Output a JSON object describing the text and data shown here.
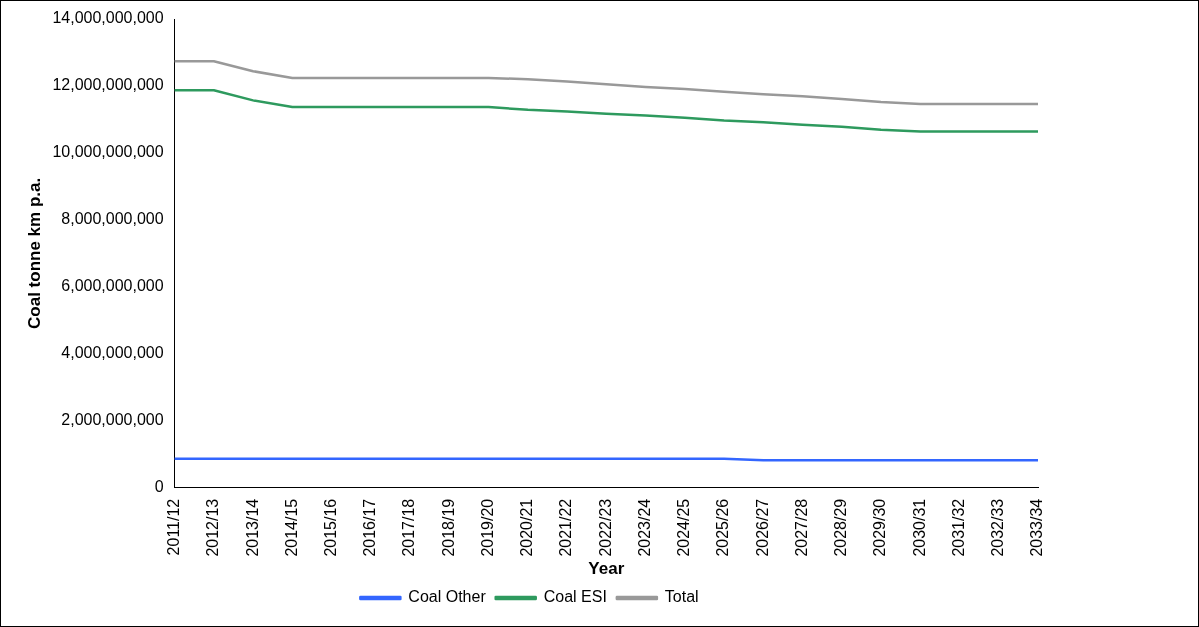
{
  "chart_data": {
    "type": "line",
    "xlabel": "Year",
    "ylabel": "Coal tonne km p.a.",
    "categories": [
      "2011/12",
      "2012/13",
      "2013/14",
      "2014/15",
      "2015/16",
      "2016/17",
      "2017/18",
      "2018/19",
      "2019/20",
      "2020/21",
      "2021/22",
      "2022/23",
      "2023/24",
      "2024/25",
      "2025/26",
      "2026/27",
      "2027/28",
      "2028/29",
      "2029/30",
      "2030/31",
      "2031/32",
      "2032/33",
      "2033/34"
    ],
    "series": [
      {
        "name": "Coal Other",
        "color": "#3366ff",
        "values": [
          870000000,
          870000000,
          870000000,
          870000000,
          870000000,
          870000000,
          870000000,
          870000000,
          870000000,
          870000000,
          870000000,
          870000000,
          870000000,
          870000000,
          870000000,
          820000000,
          820000000,
          820000000,
          820000000,
          820000000,
          820000000,
          820000000,
          820000000
        ]
      },
      {
        "name": "Coal ESI",
        "color": "#2e9a5e",
        "values": [
          11870000000,
          11870000000,
          11570000000,
          11370000000,
          11370000000,
          11370000000,
          11370000000,
          11370000000,
          11370000000,
          11290000000,
          11240000000,
          11170000000,
          11120000000,
          11050000000,
          10970000000,
          10920000000,
          10840000000,
          10780000000,
          10690000000,
          10640000000,
          10640000000,
          10640000000,
          10640000000
        ]
      },
      {
        "name": "Total",
        "color": "#999999",
        "values": [
          12740000000,
          12740000000,
          12440000000,
          12240000000,
          12240000000,
          12240000000,
          12240000000,
          12240000000,
          12240000000,
          12200000000,
          12130000000,
          12050000000,
          11970000000,
          11910000000,
          11830000000,
          11750000000,
          11690000000,
          11610000000,
          11520000000,
          11460000000,
          11460000000,
          11460000000,
          11460000000
        ]
      }
    ],
    "ylim": [
      0,
      14000000000
    ],
    "yticks": [
      0,
      {
        "value": 2000000000,
        "label": "2,000,000,000"
      },
      {
        "value": 4000000000,
        "label": "4,000,000,000"
      },
      {
        "value": 6000000000,
        "label": "6,000,000,000"
      },
      {
        "value": 8000000000,
        "label": "8,000,000,000"
      },
      {
        "value": 10000000000,
        "label": "10,000,000,000"
      },
      {
        "value": 12000000000,
        "label": "12,000,000,000"
      },
      {
        "value": 14000000000,
        "label": "14,000,000,000"
      }
    ],
    "grid": false,
    "legend": "bottom",
    "marker": "none",
    "line_style": "solid"
  }
}
